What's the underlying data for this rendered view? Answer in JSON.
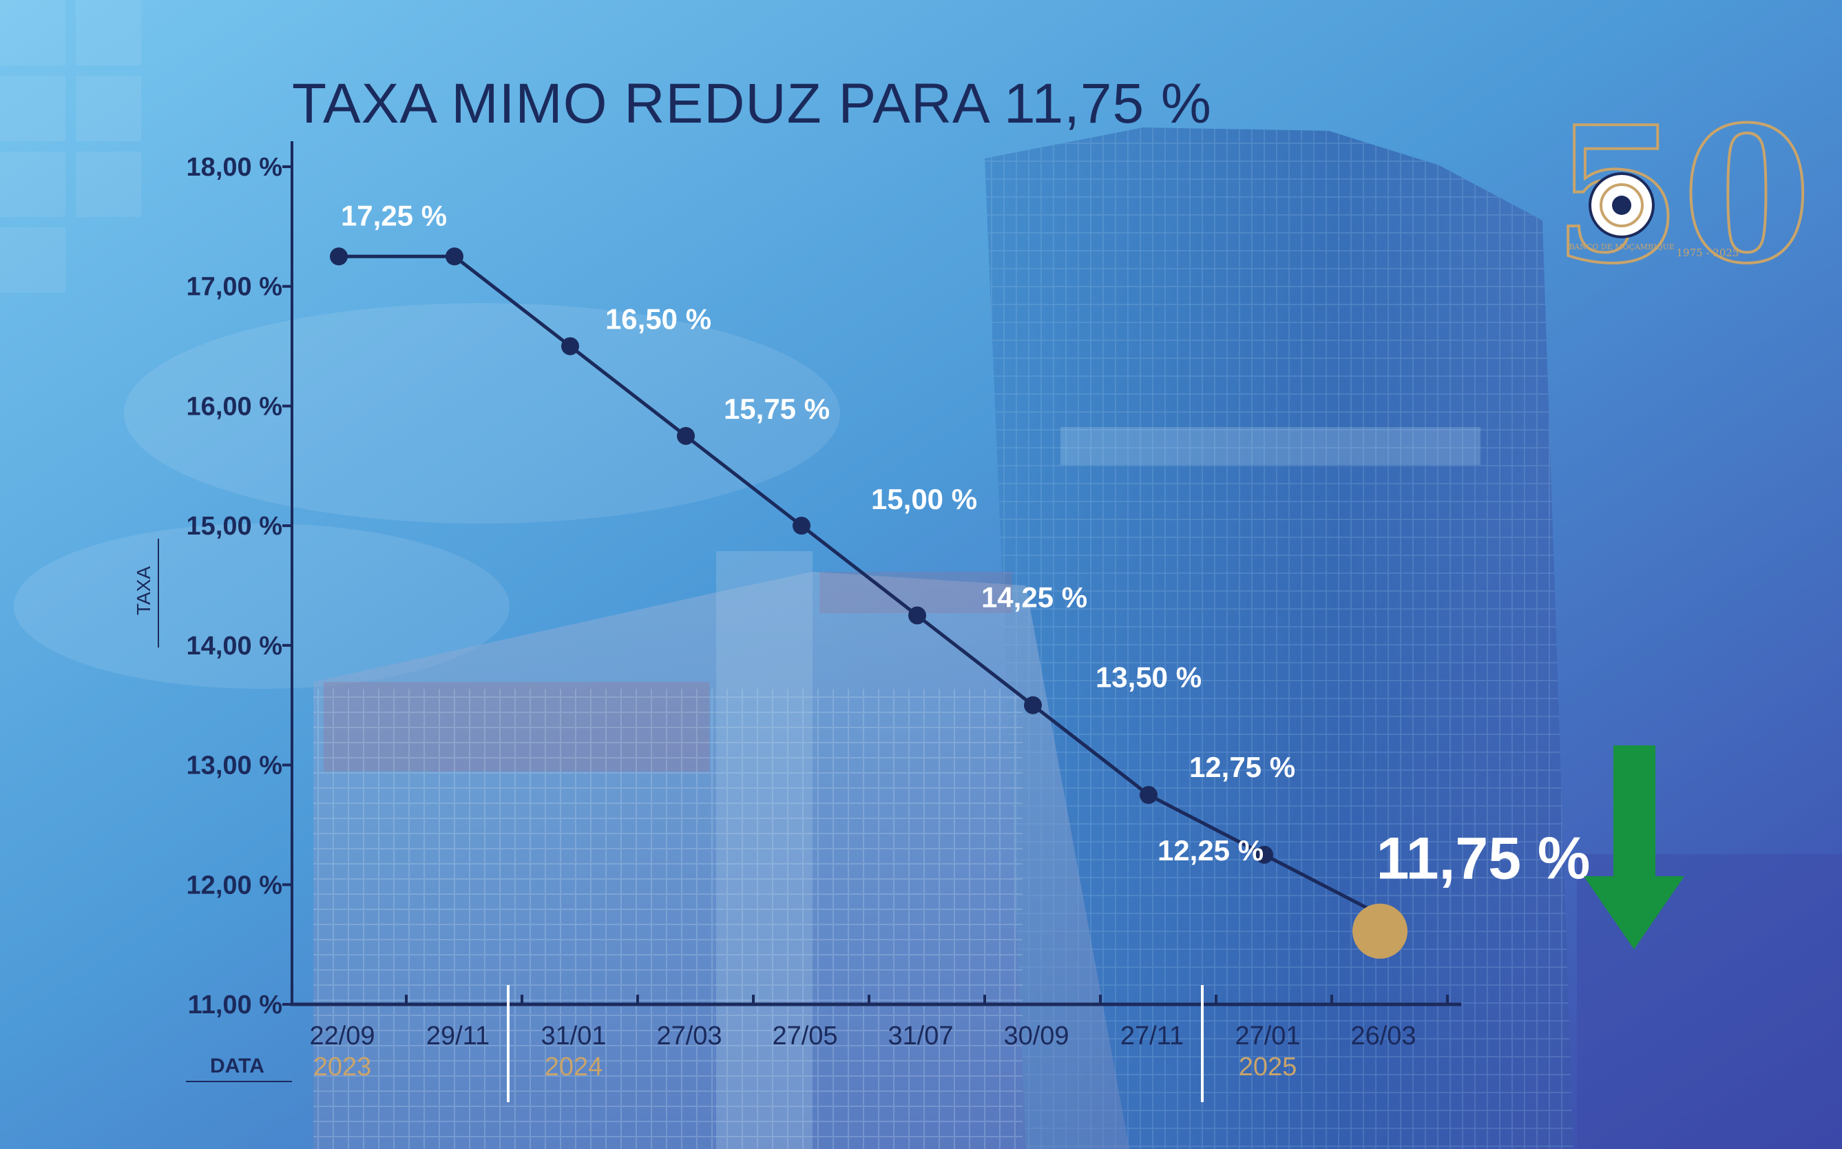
{
  "chart_data": {
    "type": "line",
    "title": "TAXA MIMO REDUZ PARA 11,75 %",
    "ylabel": "TAXA",
    "xlabel": "DATA",
    "ylim": [
      11,
      18
    ],
    "y_ticks": [
      "11,00 %",
      "12,00 %",
      "13,00 %",
      "14,00 %",
      "15,00 %",
      "16,00 %",
      "17,00 %",
      "18,00 %"
    ],
    "categories": [
      "22/09",
      "29/11",
      "31/01",
      "27/03",
      "27/05",
      "31/07",
      "30/09",
      "27/11",
      "27/01",
      "26/03"
    ],
    "years": [
      {
        "label": "2023",
        "start": 0
      },
      {
        "label": "2024",
        "start": 2
      },
      {
        "label": "2025",
        "start": 8
      }
    ],
    "values": [
      17.25,
      17.25,
      16.5,
      15.75,
      15.0,
      14.25,
      13.5,
      12.75,
      12.25,
      11.75
    ],
    "data_labels": [
      "17,25 %",
      "",
      "16,50 %",
      "15,75 %",
      "15,00 %",
      "14,25 %",
      "13,50 %",
      "12,75 %",
      "12,25 %",
      "11,75 %"
    ],
    "highlight": {
      "label": "11,75 %",
      "index": 9
    },
    "grid": false,
    "trend_indicator": "down-arrow"
  },
  "logo": {
    "text": "BANCO DE MOÇAMBIQUE",
    "years": "1975 - 2025",
    "number": "50"
  },
  "colors": {
    "line": "#1b2a5c",
    "axis": "#1b2a5c",
    "label_white": "#ffffff",
    "year_gold": "#c9a46a",
    "highlight_gold": "#c8a15f",
    "arrow_green": "#17923e",
    "background_top": "#5fb6e6",
    "background_bottom": "#3e4fae"
  }
}
